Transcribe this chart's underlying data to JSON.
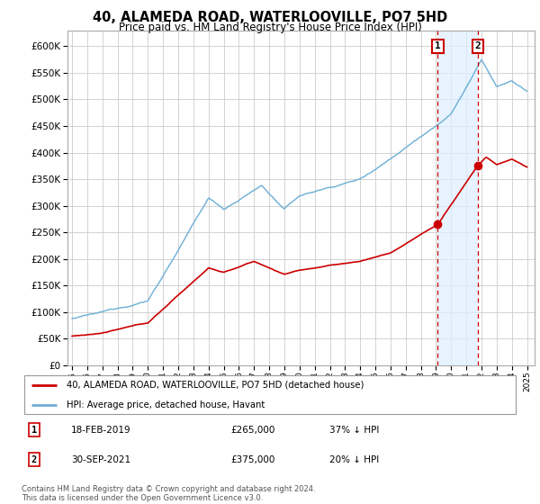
{
  "title": "40, ALAMEDA ROAD, WATERLOOVILLE, PO7 5HD",
  "subtitle": "Price paid vs. HM Land Registry's House Price Index (HPI)",
  "ylabel_ticks": [
    0,
    50000,
    100000,
    150000,
    200000,
    250000,
    300000,
    350000,
    400000,
    450000,
    500000,
    550000,
    600000
  ],
  "x_start_year": 1995,
  "x_end_year": 2025,
  "red_line_label": "40, ALAMEDA ROAD, WATERLOOVILLE, PO7 5HD (detached house)",
  "blue_line_label": "HPI: Average price, detached house, Havant",
  "transaction1_date": "18-FEB-2019",
  "transaction1_price": "£265,000",
  "transaction1_note": "37% ↓ HPI",
  "transaction1_year": 2019.12,
  "transaction1_value": 265000,
  "transaction2_date": "30-SEP-2021",
  "transaction2_price": "£375,000",
  "transaction2_note": "20% ↓ HPI",
  "transaction2_year": 2021.75,
  "transaction2_value": 375000,
  "copyright_text": "Contains HM Land Registry data © Crown copyright and database right 2024.\nThis data is licensed under the Open Government Licence v3.0.",
  "hpi_color": "#6baed6",
  "price_color": "#cc0000",
  "dashed_color": "#cc0000",
  "shade_color": "#ddeeff",
  "background_color": "#ffffff",
  "grid_color": "#cccccc",
  "annotation_box_color": "#cc0000"
}
